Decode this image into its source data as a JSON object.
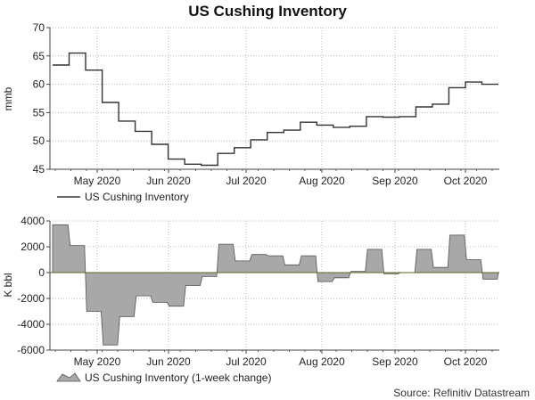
{
  "title": "US Cushing Inventory",
  "source": "Source: Refinitiv Datastream",
  "chart_data": [
    {
      "type": "line",
      "ylabel": "mmb",
      "ylim": [
        45,
        70
      ],
      "yticks": [
        45,
        50,
        55,
        60,
        65,
        70
      ],
      "xlabels": [
        "May 2020",
        "Jun 2020",
        "Jul 2020",
        "Aug 2020",
        "Sep 2020",
        "Oct 2020"
      ],
      "grid": true,
      "legend": "bottom-left",
      "series": [
        {
          "name": "US Cushing Inventory",
          "color": "#333333",
          "values": [
            63.4,
            65.5,
            62.5,
            56.8,
            53.5,
            51.7,
            49.4,
            46.8,
            45.9,
            45.7,
            47.8,
            48.8,
            50.2,
            51.5,
            51.9,
            53.3,
            52.8,
            52.4,
            52.6,
            54.3,
            54.2,
            54.3,
            56.0,
            56.5,
            59.4,
            60.4,
            60.0
          ]
        }
      ]
    },
    {
      "type": "area",
      "ylabel": "K bbl",
      "ylim": [
        -6000,
        4000
      ],
      "yticks": [
        -6000,
        -4000,
        -2000,
        0,
        2000,
        4000
      ],
      "xlabels": [
        "May 2020",
        "Jun 2020",
        "Jul 2020",
        "Aug 2020",
        "Sep 2020",
        "Oct 2020"
      ],
      "grid": true,
      "legend": "bottom-left",
      "series": [
        {
          "name": "US Cushing Inventory (1-week change)",
          "color": "#a8a8a8",
          "values": [
            3700,
            2100,
            -3000,
            -5600,
            -3400,
            -1800,
            -2300,
            -2600,
            -1000,
            -300,
            2200,
            900,
            1400,
            1300,
            600,
            1300,
            -700,
            -400,
            100,
            1800,
            -100,
            0,
            1800,
            400,
            2900,
            1000,
            -500
          ]
        }
      ]
    }
  ]
}
